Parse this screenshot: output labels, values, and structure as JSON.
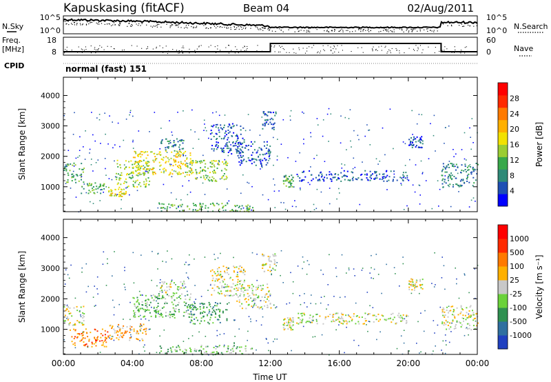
{
  "header": {
    "station": "Kapuskasing (fitACF)",
    "beam": "Beam 04",
    "date": "02/Aug/2011"
  },
  "noise_panel": {
    "left_label": "N.Sky",
    "right_label": "N.Search",
    "left_ticks": [
      "10^5",
      "10^0"
    ],
    "right_ticks": [
      "10^5",
      "10^0"
    ]
  },
  "freq_panel": {
    "left_label_1": "Freq.",
    "left_label_2": "[MHz]",
    "right_label": "Nave",
    "left_ticks": [
      "18",
      "8"
    ],
    "right_ticks": [
      "60",
      "0"
    ]
  },
  "cpid": {
    "label": "CPID",
    "value": "normal (fast) 151"
  },
  "chart_data": [
    {
      "type": "heatmap",
      "name_hint": "power",
      "ylabel": "Slant Range [km]",
      "xlabel": "",
      "x_ticks": [
        "00:00",
        "04:00",
        "08:00",
        "12:00",
        "16:00",
        "20:00",
        "00:00"
      ],
      "y_ticks": [
        "1000",
        "2000",
        "3000",
        "4000"
      ],
      "xlim_hours": [
        0,
        24
      ],
      "ylim_km": [
        180,
        4600
      ],
      "colorbar": {
        "label": "Power [dB]",
        "ticks": [
          "4",
          "8",
          "12",
          "16",
          "20",
          "24",
          "28"
        ],
        "colors": [
          "#0000ff",
          "#1e4fb4",
          "#2f8a78",
          "#37a84a",
          "#9acd32",
          "#f2e100",
          "#ffb000",
          "#ff7a00",
          "#ff2a00",
          "#ff0000"
        ]
      },
      "regions": [
        {
          "t0": 0.0,
          "t1": 1.2,
          "r0": 1150,
          "r1": 1800,
          "level": 3
        },
        {
          "t0": 1.0,
          "t1": 2.6,
          "r0": 800,
          "r1": 1150,
          "level": 3
        },
        {
          "t0": 2.6,
          "t1": 3.6,
          "r0": 700,
          "r1": 950,
          "level": 5
        },
        {
          "t0": 3.0,
          "t1": 5.0,
          "r0": 1000,
          "r1": 1900,
          "level": 4
        },
        {
          "t0": 4.0,
          "t1": 7.5,
          "r0": 1400,
          "r1": 2200,
          "level": 5
        },
        {
          "t0": 5.5,
          "t1": 7.0,
          "r0": 2200,
          "r1": 2600,
          "level": 2
        },
        {
          "t0": 7.0,
          "t1": 9.5,
          "r0": 1200,
          "r1": 1900,
          "level": 4
        },
        {
          "t0": 8.5,
          "t1": 10.5,
          "r0": 2100,
          "r1": 3100,
          "level": 1
        },
        {
          "t0": 10.0,
          "t1": 12.0,
          "r0": 1700,
          "r1": 2500,
          "level": 1
        },
        {
          "t0": 12.7,
          "t1": 13.3,
          "r0": 1000,
          "r1": 1400,
          "level": 3
        },
        {
          "t0": 13.5,
          "t1": 20.0,
          "r0": 1200,
          "r1": 1550,
          "level": 1
        },
        {
          "t0": 20.0,
          "t1": 20.8,
          "r0": 2300,
          "r1": 2700,
          "level": 1
        },
        {
          "t0": 21.9,
          "t1": 24.0,
          "r0": 1000,
          "r1": 1800,
          "level": 2
        },
        {
          "t0": 5.5,
          "t1": 11.0,
          "r0": 200,
          "r1": 500,
          "level": 3
        },
        {
          "t0": 11.5,
          "t1": 12.3,
          "r0": 2900,
          "r1": 3500,
          "level": 1
        }
      ]
    },
    {
      "type": "heatmap",
      "name_hint": "velocity",
      "ylabel": "Slant Range [km]",
      "xlabel": "Time UT",
      "x_ticks": [
        "00:00",
        "04:00",
        "08:00",
        "12:00",
        "16:00",
        "20:00",
        "00:00"
      ],
      "y_ticks": [
        "1000",
        "2000",
        "3000",
        "4000"
      ],
      "xlim_hours": [
        0,
        24
      ],
      "ylim_km": [
        180,
        4600
      ],
      "colorbar": {
        "label": "Velocity [m s⁻¹]",
        "ticks": [
          "1000",
          "500",
          "100",
          "25",
          "-25",
          "-100",
          "-500",
          "-1000"
        ],
        "colors": [
          "#2040c0",
          "#2f6fa0",
          "#2f9050",
          "#6ad23a",
          "#c8c8c8",
          "#ffb000",
          "#ff7a00",
          "#ff2a00",
          "#ff0000"
        ]
      },
      "regions": [
        {
          "t0": 0.0,
          "t1": 1.2,
          "r0": 1150,
          "r1": 1800,
          "level": 4
        },
        {
          "t0": 0.3,
          "t1": 2.6,
          "r0": 450,
          "r1": 1050,
          "level": 6
        },
        {
          "t0": 2.6,
          "t1": 4.8,
          "r0": 650,
          "r1": 1200,
          "level": 5
        },
        {
          "t0": 4.0,
          "t1": 7.5,
          "r0": 1400,
          "r1": 2200,
          "level": 3
        },
        {
          "t0": 5.5,
          "t1": 7.0,
          "r0": 2200,
          "r1": 2600,
          "level": 4
        },
        {
          "t0": 7.0,
          "t1": 9.5,
          "r0": 1200,
          "r1": 1900,
          "level": 2
        },
        {
          "t0": 8.5,
          "t1": 10.5,
          "r0": 2100,
          "r1": 3100,
          "level": 4
        },
        {
          "t0": 10.0,
          "t1": 12.0,
          "r0": 1700,
          "r1": 2500,
          "level": 4
        },
        {
          "t0": 12.7,
          "t1": 13.3,
          "r0": 1000,
          "r1": 1400,
          "level": 4
        },
        {
          "t0": 13.5,
          "t1": 20.0,
          "r0": 1200,
          "r1": 1550,
          "level": 4
        },
        {
          "t0": 20.0,
          "t1": 20.8,
          "r0": 2300,
          "r1": 2700,
          "level": 4
        },
        {
          "t0": 21.9,
          "t1": 24.0,
          "r0": 1000,
          "r1": 1800,
          "level": 4
        },
        {
          "t0": 5.5,
          "t1": 11.0,
          "r0": 200,
          "r1": 500,
          "level": 3
        },
        {
          "t0": 11.5,
          "t1": 12.3,
          "r0": 2900,
          "r1": 3500,
          "level": 4
        }
      ]
    }
  ]
}
